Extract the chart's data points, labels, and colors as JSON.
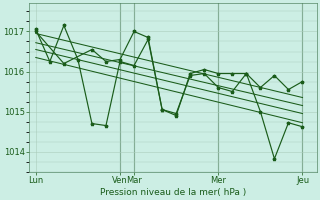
{
  "title": "Pression niveau de la mer( hPa )",
  "background_color": "#cceee4",
  "grid_color": "#aaccbb",
  "line_color": "#1a5c1a",
  "dark_vline_color": "#558866",
  "ylim": [
    1013.5,
    1017.7
  ],
  "yticks": [
    1014,
    1015,
    1016,
    1017
  ],
  "xtick_labels": [
    "Lun",
    "Ven",
    "Mar",
    "Mer",
    "Jeu"
  ],
  "xtick_positions": [
    0,
    12,
    14,
    26,
    38
  ],
  "vline_positions": [
    12,
    14,
    26,
    38
  ],
  "n_points": 40,
  "series1_x": [
    0,
    4,
    8,
    10,
    12,
    14,
    16,
    18,
    20,
    22,
    24,
    26,
    28,
    30,
    32,
    34,
    36,
    38
  ],
  "series1_y": [
    1017.0,
    1016.2,
    1016.55,
    1016.25,
    1016.3,
    1017.0,
    1016.85,
    1015.05,
    1014.95,
    1015.9,
    1015.95,
    1015.6,
    1015.5,
    1015.95,
    1015.6,
    1015.9,
    1015.55,
    1015.75
  ],
  "series2_x": [
    0,
    2,
    4,
    6,
    8,
    10,
    12,
    14,
    16,
    18,
    20,
    22,
    24,
    26,
    28,
    30,
    32,
    34,
    36,
    38
  ],
  "series2_y": [
    1017.05,
    1016.25,
    1017.15,
    1016.3,
    1014.7,
    1014.65,
    1016.25,
    1016.15,
    1016.8,
    1015.05,
    1014.9,
    1015.95,
    1016.05,
    1015.95,
    1015.95,
    1015.95,
    1015.0,
    1013.82,
    1014.72,
    1014.62
  ],
  "trend_lines": [
    [
      1016.95,
      1015.35
    ],
    [
      1016.72,
      1015.15
    ],
    [
      1016.55,
      1014.95
    ],
    [
      1016.35,
      1014.72
    ]
  ]
}
